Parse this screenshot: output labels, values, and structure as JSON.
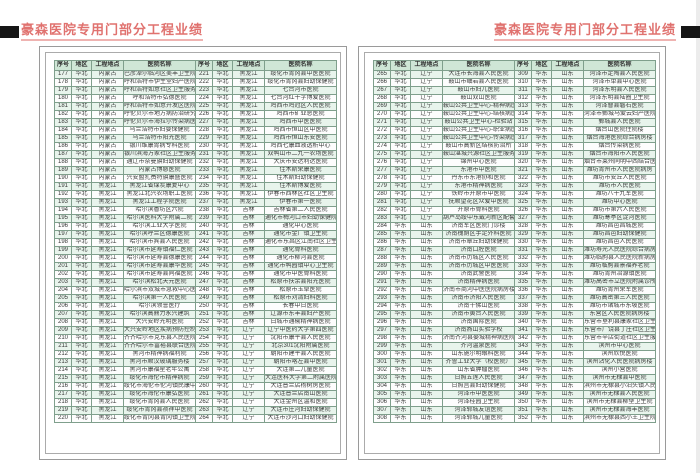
{
  "title": "豪森医院专用门部分工程业绩",
  "columns": [
    "序号",
    "地区",
    "工程地点",
    "医院名称"
  ],
  "column_keys": [
    "serial",
    "region",
    "location",
    "hospital"
  ],
  "colors": {
    "title_text": "#e0726f",
    "title_underline": "#efb3b1",
    "corner_tab": "#161616",
    "table_border": "#7f9f8c",
    "header_bg": "#cfe6d6",
    "row_alt_bg": "#e8f4ec",
    "page_border": "#9a9a9a"
  },
  "pages": [
    {
      "groups": [
        [
          [
            177,
            "华北",
            "内蒙古",
            "巴彦淖尔临河区美丰卫生院"
          ],
          [
            178,
            "华北",
            "内蒙古",
            "呼和浩特市伊生堂妇产医院"
          ],
          [
            179,
            "华北",
            "内蒙古",
            "呼和浩特如意社区卫生服务中心"
          ],
          [
            180,
            "华北",
            "内蒙古",
            "呼和浩特市弘德医院"
          ],
          [
            181,
            "华北",
            "内蒙古",
            "呼和浩特市如意开发区医院"
          ],
          [
            182,
            "华北",
            "内蒙古",
            "呼伦贝尔市地方病防治研究所"
          ],
          [
            183,
            "华北",
            "内蒙古",
            "呼伦贝尔市海拉尔传染病医院"
          ],
          [
            184,
            "华北",
            "内蒙古",
            "乌兰浩特市妇婴保健院"
          ],
          [
            185,
            "华北",
            "内蒙古",
            "乌兰浩特市阳光医院"
          ],
          [
            186,
            "华北",
            "内蒙古",
            "银川维康胃病专科医院"
          ],
          [
            187,
            "华北",
            "内蒙古",
            "银川滨海万家社区卫生服务中心"
          ],
          [
            188,
            "华北",
            "内蒙古",
            "通辽市奈曼旗妇幼保健院"
          ],
          [
            189,
            "华北",
            "内蒙古",
            "内蒙古博慈医院"
          ],
          [
            190,
            "华北",
            "内蒙古",
            "兴安盟扎赉特旗康盛医院"
          ],
          [
            191,
            "华北",
            "黑龙江",
            "黑龙江省煤炭康复中心"
          ],
          [
            192,
            "华北",
            "黑龙江",
            "黑龙江北兴农场职工医院"
          ],
          [
            193,
            "华北",
            "黑龙江",
            "黑龙江工程学院医院"
          ],
          [
            194,
            "华北",
            "黑龙江",
            "哈尔滨香坊区六院"
          ],
          [
            195,
            "华北",
            "黑龙江",
            "哈尔滨医科大学附属二院"
          ],
          [
            196,
            "华北",
            "黑龙江",
            "哈尔滨工业大学医院"
          ],
          [
            197,
            "华北",
            "黑龙江",
            "哈尔滨呼兰区德康医院"
          ],
          [
            198,
            "华北",
            "黑龙江",
            "哈尔滨市宾县人民医院"
          ],
          [
            199,
            "华北",
            "黑龙江",
            "哈尔滨市延寿镇福仁医院"
          ],
          [
            200,
            "华北",
            "黑龙江",
            "哈尔滨市延寿县德康医院"
          ],
          [
            201,
            "华北",
            "黑龙江",
            "哈尔滨市延寿县康华医院"
          ],
          [
            202,
            "华北",
            "黑龙江",
            "哈尔滨市延寿县同福医院"
          ],
          [
            203,
            "华北",
            "黑龙江",
            "哈尔滨松北天元医院"
          ],
          [
            204,
            "华北",
            "黑龙江",
            "哈尔滨市双城市急救中心医院"
          ],
          [
            205,
            "华北",
            "黑龙江",
            "哈尔滨第一人民医院"
          ],
          [
            206,
            "华北",
            "黑龙江",
            "哈尔滨领誉医疗"
          ],
          [
            207,
            "华北",
            "黑龙江",
            "哈尔滨高鼎力永兴建筑"
          ],
          [
            208,
            "华北",
            "黑龙江",
            "大兴安岭光明医院"
          ],
          [
            209,
            "华北",
            "黑龙江",
            "大兴安岭地区疾病预防控制中心"
          ],
          [
            210,
            "华北",
            "黑龙江",
            "齐齐哈尔市克东县人民医院"
          ],
          [
            211,
            "华北",
            "黑龙江",
            "齐齐哈尔市富裕县联合医院"
          ],
          [
            212,
            "华北",
            "黑龙江",
            "黑河市精神病福利院"
          ],
          [
            213,
            "华北",
            "黑龙江",
            "黑河市顺汉玻璃服务楼"
          ],
          [
            214,
            "华北",
            "黑龙江",
            "黑河市康福星老年公寓"
          ],
          [
            215,
            "华北",
            "黑龙江",
            "绥化市海伦市精神病院"
          ],
          [
            216,
            "华北",
            "黑龙江",
            "绥化市海伦市伦河镇民康中心医院"
          ],
          [
            217,
            "华北",
            "黑龙江",
            "绥化市海伦市康弘医院"
          ],
          [
            218,
            "华北",
            "黑龙江",
            "绥化市青冈县人民医院"
          ],
          [
            219,
            "华北",
            "黑龙江",
            "绥化市青冈县祯祥中医院"
          ],
          [
            220,
            "华北",
            "黑龙江",
            "绥化市青冈县青冈镇卫生院"
          ]
        ],
        [
          [
            221,
            "华北",
            "黑龙江",
            "绥化市青冈县中医医院"
          ],
          [
            222,
            "华北",
            "黑龙江",
            "绥化市青冈县妇幼保健院"
          ],
          [
            223,
            "华北",
            "黑龙江",
            "七台河市医院"
          ],
          [
            224,
            "华北",
            "黑龙江",
            "七台河红十字博爱医院"
          ],
          [
            225,
            "华北",
            "黑龙江",
            "鸡西市鸡冠区人民医院"
          ],
          [
            226,
            "华北",
            "黑龙江",
            "鸡西市矿业总医院"
          ],
          [
            227,
            "华北",
            "黑龙江",
            "鸡西市中医医院"
          ],
          [
            228,
            "华北",
            "黑龙江",
            "鸡西市恒山区中医院"
          ],
          [
            229,
            "华北",
            "黑龙江",
            "鸡西市恒山东安医院"
          ],
          [
            230,
            "华北",
            "黑龙江",
            "鸡西七康血液透析中心"
          ],
          [
            231,
            "华北",
            "黑龙江",
            "双鸭山市二九一农场医院"
          ],
          [
            232,
            "华北",
            "黑龙江",
            "大庆市安达利达医院"
          ],
          [
            233,
            "华北",
            "黑龙江",
            "佳木斯荣康医院"
          ],
          [
            234,
            "华北",
            "黑龙江",
            "佳木斯妇幼保健院"
          ],
          [
            235,
            "华北",
            "黑龙江",
            "佳木斯博爱医院"
          ],
          [
            236,
            "华北",
            "黑龙江",
            "伊春市西林区社区卫生院"
          ],
          [
            237,
            "华北",
            "黑龙江",
            "伊春市第一医院"
          ],
          [
            238,
            "华北",
            "吉林",
            "吉林省第二人民医院"
          ],
          [
            239,
            "华北",
            "吉林",
            "通化市梅河口市妇幼保健院住院楼"
          ],
          [
            240,
            "华北",
            "吉林",
            "通化中心医院"
          ],
          [
            241,
            "华北",
            "吉林",
            "通化市金厂镇卫生院"
          ],
          [
            242,
            "华北",
            "吉林",
            "通化市东昌区江南社区卫生服务中心"
          ],
          [
            243,
            "华北",
            "吉林",
            "通化骨科医院"
          ],
          [
            244,
            "华北",
            "吉林",
            "通化市柳河县医院"
          ],
          [
            245,
            "华北",
            "吉林",
            "通化市鸭园镇中心卫生院"
          ],
          [
            246,
            "华北",
            "吉林",
            "通化市中医骨科医院"
          ],
          [
            247,
            "华北",
            "吉林",
            "松原市扶余县阳光医院"
          ],
          [
            248,
            "华北",
            "吉林",
            "松原市玉卓医院"
          ],
          [
            249,
            "华北",
            "吉林",
            "松原市刘清妇科医院"
          ],
          [
            250,
            "华北",
            "吉林",
            "长春中日医院"
          ],
          [
            251,
            "华北",
            "吉林",
            "辽源市东丰县妇产医院"
          ],
          [
            252,
            "华北",
            "吉林",
            "白城市通榆精神病医院"
          ],
          [
            253,
            "华北",
            "辽宁",
            "辽宁中医药大学第四医院"
          ],
          [
            254,
            "华北",
            "辽宁",
            "沈阳市康平县人民医院"
          ],
          [
            255,
            "华北",
            "辽宁",
            "北京301沈阳附属医院"
          ],
          [
            256,
            "华北",
            "辽宁",
            "朝阳市建平县人民医院"
          ],
          [
            257,
            "华北",
            "辽宁",
            "朝阳市喀左县中医院"
          ],
          [
            258,
            "华北",
            "辽宁",
            "大连第二儿童医院"
          ],
          [
            259,
            "华北",
            "辽宁",
            "大连医科大学第二附属医院"
          ],
          [
            260,
            "华北",
            "辽宁",
            "大连普兰店杨树房医院"
          ],
          [
            261,
            "华北",
            "辽宁",
            "大连普兰店南山医院"
          ],
          [
            262,
            "华北",
            "辽宁",
            "大连金州区温和医院"
          ],
          [
            263,
            "华北",
            "辽宁",
            "大连市庄河妇幼保健院"
          ],
          [
            264,
            "华北",
            "辽宁",
            "大连市沙河口妇幼保健院"
          ]
        ]
      ]
    },
    {
      "groups": [
        [
          [
            265,
            "华北",
            "辽宁",
            "大连市长海县人民医院"
          ],
          [
            266,
            "华北",
            "辽宁",
            "鞍山市岫岩县人民医院"
          ],
          [
            267,
            "华北",
            "辽宁",
            "鞍山市妇儿医院"
          ],
          [
            268,
            "华北",
            "辽宁",
            "鞍山双山医院"
          ],
          [
            269,
            "华北",
            "辽宁",
            "鞍山公共卫生中心-精神病医院"
          ],
          [
            270,
            "华北",
            "辽宁",
            "鞍山公共卫生中心-结核病医院"
          ],
          [
            271,
            "华北",
            "辽宁",
            "鞍山公共卫生中心-检验站"
          ],
          [
            272,
            "华北",
            "辽宁",
            "鞍山公共卫生中心-职业病医院"
          ],
          [
            273,
            "华北",
            "辽宁",
            "鞍山公共卫生中心-传染病医院"
          ],
          [
            274,
            "华北",
            "辽宁",
            "鞍山市高新区结核防治所"
          ],
          [
            275,
            "华北",
            "辽宁",
            "鞍山湛城兴源社区卫生服务站"
          ],
          [
            276,
            "华北",
            "辽宁",
            "锦州中心医院"
          ],
          [
            277,
            "华北",
            "辽宁",
            "东港市中医院"
          ],
          [
            278,
            "华北",
            "辽宁",
            "丹东市东港协和医院"
          ],
          [
            279,
            "华北",
            "辽宁",
            "东港市精神病医院"
          ],
          [
            280,
            "华北",
            "辽宁",
            "铁岭市开原市中医院"
          ],
          [
            281,
            "华北",
            "辽宁",
            "抚顺望花区众爱中医院"
          ],
          [
            282,
            "华北",
            "辽宁",
            "开原市骨科医院"
          ],
          [
            283,
            "华北",
            "辽宁",
            "葫芦岛绥中东戴河新区配套医院"
          ],
          [
            284,
            "华东",
            "山东",
            "济南军区医院门诊楼"
          ],
          [
            285,
            "华东",
            "山东",
            "济南槐荫区手足外科医院"
          ],
          [
            286,
            "华东",
            "山东",
            "济南市章丘妇幼保健院"
          ],
          [
            287,
            "华东",
            "山东",
            "济南口腔医院"
          ],
          [
            288,
            "华东",
            "山东",
            "济南市历城区人民医院"
          ],
          [
            289,
            "华东",
            "山东",
            "济南市历城区中医医院"
          ],
          [
            290,
            "华东",
            "山东",
            "济南武警医院"
          ],
          [
            291,
            "华东",
            "山东",
            "济南精神病医院"
          ],
          [
            292,
            "华东",
            "山东",
            "济南市商河中医医院病房楼"
          ],
          [
            293,
            "华东",
            "山东",
            "济南市济阳人民医院"
          ],
          [
            294,
            "华东",
            "山东",
            "济南千佛山医院"
          ],
          [
            295,
            "华东",
            "山东",
            "济南市黄台人民医院"
          ],
          [
            296,
            "华东",
            "山东",
            "济南国际医院"
          ],
          [
            297,
            "华东",
            "山东",
            "济南燕山实验学校"
          ],
          [
            298,
            "华东",
            "山东",
            "济南齐河县晏城精神病医院"
          ],
          [
            299,
            "华东",
            "山东",
            "齐河温泉医院"
          ],
          [
            300,
            "华东",
            "山东",
            "山东施尔明眼科医院"
          ],
          [
            301,
            "华东",
            "山东",
            "齐鲁工业大学（校医院）"
          ],
          [
            302,
            "华东",
            "山东",
            "山东省肿瘤医院"
          ],
          [
            303,
            "华东",
            "山东",
            "日照五莲人民医院"
          ],
          [
            304,
            "华东",
            "山东",
            "日照莒县妇幼保健院"
          ],
          [
            305,
            "华东",
            "山东",
            "菏泽市中医医院"
          ],
          [
            306,
            "华东",
            "山东",
            "菏泽桂园卫生院"
          ],
          [
            307,
            "华东",
            "山东",
            "菏泽郓城友谊医院"
          ],
          [
            308,
            "华东",
            "山东",
            "菏泽郓城儿童医院"
          ]
        ],
        [
          [
            309,
            "华东",
            "山东",
            "菏泽市定陶县人民医院"
          ],
          [
            310,
            "华东",
            "山东",
            "菏泽市单县中心医院"
          ],
          [
            311,
            "华东",
            "山东",
            "菏泽东明县人民医院"
          ],
          [
            312,
            "华东",
            "山东",
            "菏泽东明县陆圈卫生院"
          ],
          [
            313,
            "华东",
            "山东",
            "菏泽曹县磐石医院"
          ],
          [
            314,
            "华东",
            "山东",
            "菏泽市鄄城马爱云妇产医院"
          ],
          [
            315,
            "华东",
            "山东",
            "鄄城县人民医院"
          ],
          [
            316,
            "华东",
            "山东",
            "烟台山医院住院楼"
          ],
          [
            317,
            "华东",
            "山东",
            "烟台海港医院综合病房楼"
          ],
          [
            318,
            "华东",
            "山东",
            "烟台传染病医院"
          ],
          [
            319,
            "华东",
            "山东",
            "烟台市海阳市人民医院"
          ],
          [
            320,
            "华东",
            "山东",
            "烟台市莱州同明中西结合医院"
          ],
          [
            321,
            "华东",
            "山东",
            "潍坊青州市人民医院病房"
          ],
          [
            322,
            "华东",
            "山东",
            "潍坊市安丘人民医院"
          ],
          [
            323,
            "华东",
            "山东",
            "潍坊市人民医院"
          ],
          [
            324,
            "华东",
            "山东",
            "潍坊八十九军医院"
          ],
          [
            325,
            "华东",
            "山东",
            "潍坊中心医院"
          ],
          [
            326,
            "华东",
            "山东",
            "潍坊市第六人民医院"
          ],
          [
            327,
            "华东",
            "山东",
            "潍坊寒亭区浞河医院"
          ],
          [
            328,
            "华东",
            "山东",
            "潍坊昌邑昌城医院"
          ],
          [
            329,
            "华东",
            "山东",
            "潍坊昌邑妇幼保健院"
          ],
          [
            330,
            "华东",
            "山东",
            "潍坊昌邑人民医院"
          ],
          [
            331,
            "华东",
            "山东",
            "潍坊寿光人民医院综合病房楼"
          ],
          [
            332,
            "华东",
            "山东",
            "潍坊临朐县人民医院新病房楼"
          ],
          [
            333,
            "华东",
            "山东",
            "潍坊临朐县景福养老院"
          ],
          [
            334,
            "华东",
            "山东",
            "潍坊青州冶源镇医院"
          ],
          [
            335,
            "华东",
            "山东",
            "潍坊高密市立医院附属诊所"
          ],
          [
            336,
            "华东",
            "山东",
            "潍坊青州荣军医院"
          ],
          [
            337,
            "华东",
            "山东",
            "潍坊高密第三人民医院"
          ],
          [
            338,
            "华东",
            "山东",
            "潍坊市诸城市东坡医院"
          ],
          [
            339,
            "华东",
            "山东",
            "东营区人民医院病房楼"
          ],
          [
            340,
            "华东",
            "山东",
            "东营市垦利县康家社区卫生服务中心"
          ],
          [
            341,
            "华东",
            "山东",
            "东营市广饶县丁庄社区卫生服务中心"
          ],
          [
            342,
            "华东",
            "山东",
            "东营市辛店街道社区卫生服务中心"
          ],
          [
            343,
            "华东",
            "山东",
            "滨州市中心医院"
          ],
          [
            344,
            "华东",
            "山东",
            "滨州欣悦医院"
          ],
          [
            345,
            "华东",
            "山东",
            "滨州沾化人民医院病房楼"
          ],
          [
            346,
            "华东",
            "山东",
            "滨州小营医院"
          ],
          [
            347,
            "华东",
            "山东",
            "滨州市无棣县中医院"
          ],
          [
            348,
            "华东",
            "山东",
            "滨州市无棣县小泊头镇人民医院"
          ],
          [
            349,
            "华东",
            "山东",
            "滨州市无棣县人民医院"
          ],
          [
            350,
            "华东",
            "山东",
            "滨州市无棣县柳堡卫生院"
          ],
          [
            351,
            "华东",
            "山东",
            "滨州市无棣县海丰医院"
          ],
          [
            352,
            "华东",
            "山东",
            "滨州市无棣县西小王卫生院"
          ]
        ]
      ]
    }
  ]
}
